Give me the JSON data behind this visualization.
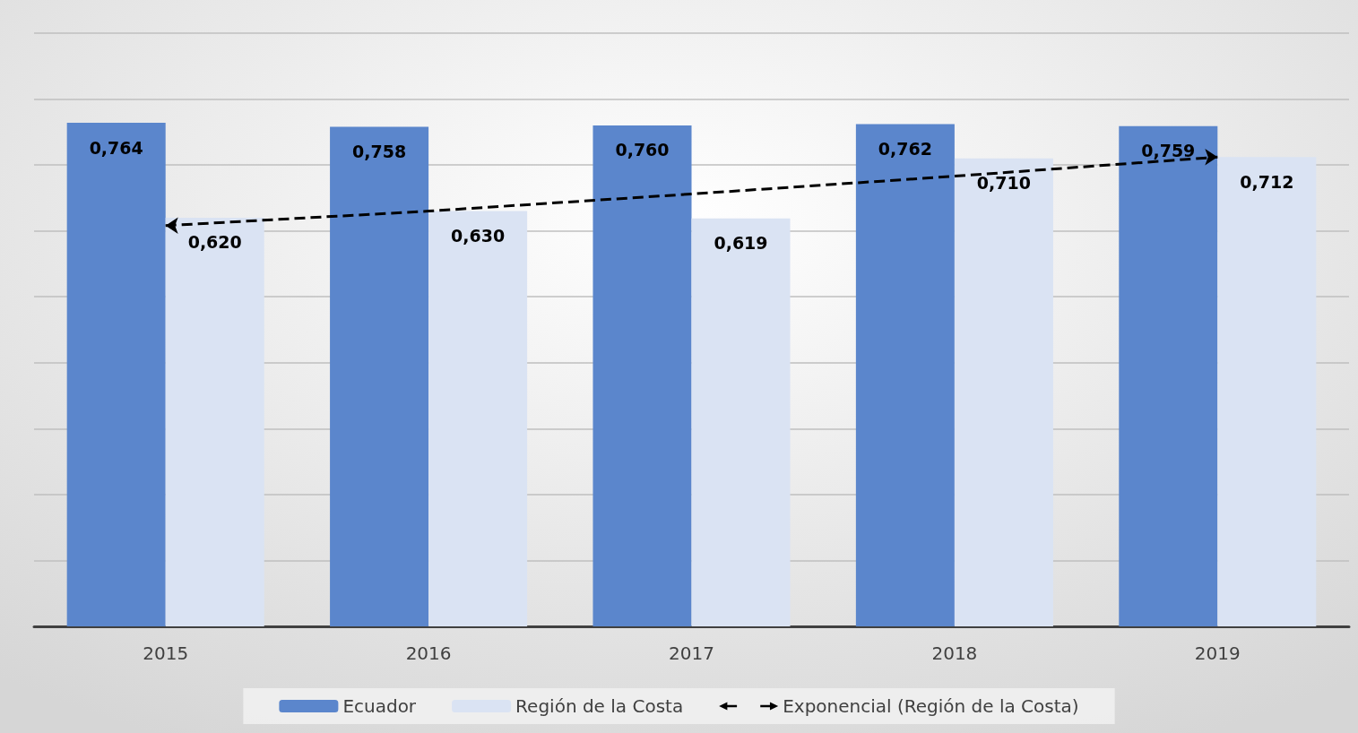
{
  "chart_data": {
    "type": "bar",
    "categories": [
      "2015",
      "2016",
      "2017",
      "2018",
      "2019"
    ],
    "series": [
      {
        "name": "Ecuador",
        "color": "#5b86cc",
        "values": [
          0.764,
          0.758,
          0.76,
          0.762,
          0.759
        ],
        "value_labels": [
          "0,764",
          "0,758",
          "0,760",
          "0,762",
          "0,759"
        ]
      },
      {
        "name": "Región de la Costa",
        "color": "#dae3f3",
        "values": [
          0.62,
          0.63,
          0.619,
          0.71,
          0.712
        ],
        "value_labels": [
          "0,620",
          "0,630",
          "0,619",
          "0,710",
          "0,712"
        ]
      },
      {
        "name": "Exponencial (Región de la Costa)",
        "type": "line",
        "color": "#000000",
        "line_style": "dashed",
        "values": [
          0.608,
          0.63,
          0.656,
          0.683,
          0.712
        ]
      }
    ],
    "ylim": [
      0,
      0.9
    ],
    "yticks": [
      {
        "value": 0,
        "label": null
      },
      {
        "value": 0.1,
        "label": null
      },
      {
        "value": 0.2,
        "label": null
      },
      {
        "value": 0.3,
        "label": null
      },
      {
        "value": 0.4,
        "label": null
      },
      {
        "value": 0.5,
        "label": null
      },
      {
        "value": 0.6,
        "label": null
      },
      {
        "value": 0.7,
        "label": null
      },
      {
        "value": 0.8,
        "label": null
      },
      {
        "value": 0.9,
        "label": null
      }
    ],
    "grid": "y",
    "legend": "bottom"
  }
}
